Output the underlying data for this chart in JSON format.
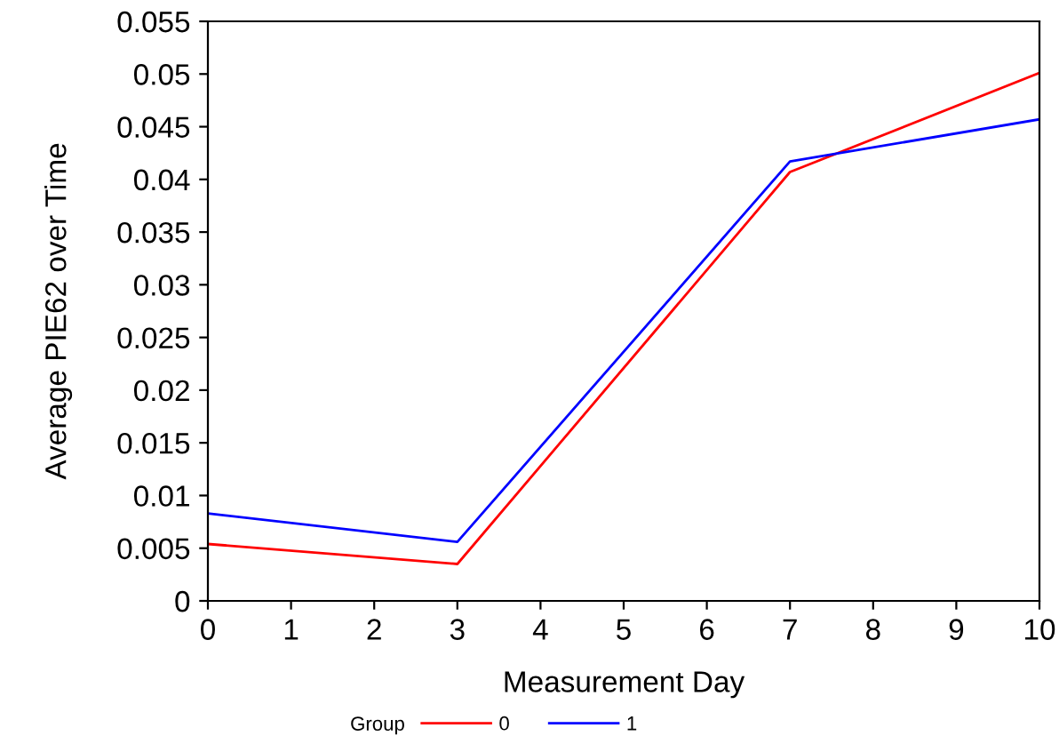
{
  "chart_data": {
    "type": "line",
    "xlabel": "Measurement Day",
    "ylabel": "Average PIE62 over Time",
    "legend_title": "Group",
    "x": [
      0,
      3,
      7,
      10
    ],
    "series": [
      {
        "name": "0",
        "color": "#ff0000",
        "values": [
          0.0054,
          0.0035,
          0.0407,
          0.0501
        ]
      },
      {
        "name": "1",
        "color": "#0000ff",
        "values": [
          0.0083,
          0.0056,
          0.0417,
          0.0457
        ]
      }
    ],
    "xlim": [
      0,
      10
    ],
    "xticks": [
      0,
      1,
      2,
      3,
      4,
      5,
      6,
      7,
      8,
      9,
      10
    ],
    "ylim": [
      0,
      0.055
    ],
    "yticks": [
      0,
      0.005,
      0.01,
      0.015,
      0.02,
      0.025,
      0.03,
      0.035,
      0.04,
      0.045,
      0.05,
      0.055
    ],
    "grid": false,
    "legend": "bottom",
    "marker": "none",
    "line_style": "solid"
  }
}
